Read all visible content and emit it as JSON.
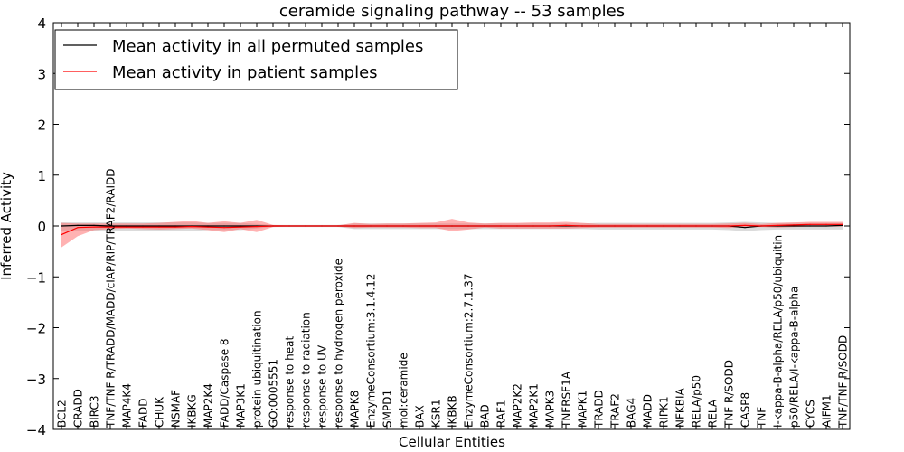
{
  "chart_data": {
    "type": "line",
    "title": "ceramide signaling pathway -- 53 samples",
    "xlabel": "Cellular Entities",
    "ylabel": "Inferred Activity",
    "ylim": [
      -4,
      4
    ],
    "yticks": [
      -4,
      -3,
      -2,
      -1,
      0,
      1,
      2,
      3,
      4
    ],
    "ytick_labels": [
      "−4",
      "−3",
      "−2",
      "−1",
      "0",
      "1",
      "2",
      "3",
      "4"
    ],
    "grid": false,
    "legend_position": "top-left",
    "categories": [
      "BCL2",
      "CRADD",
      "BIRC3",
      "TNF/TNF R/TRADD/MADD/cIAP/RIP/TRAF2/RAIDD",
      "MAP4K4",
      "FADD",
      "CHUK",
      "NSMAF",
      "IKBKG",
      "MAP2K4",
      "FADD/Caspase 8",
      "MAP3K1",
      "protein ubiquitination",
      "GO:0005551",
      "response to heat",
      "response to radiation",
      "response to UV",
      "response to hydrogen peroxide",
      "MAPK8",
      "EnzymeConsortium:3.1.4.12",
      "SMPD1",
      "mol:ceramide",
      "BAX",
      "KSR1",
      "IKBKB",
      "EnzymeConsortium:2.7.1.37",
      "BAD",
      "RAF1",
      "MAP2K2",
      "MAP2K1",
      "MAPK3",
      "TNFRSF1A",
      "MAPK1",
      "TRADD",
      "TRAF2",
      "BAG4",
      "MADD",
      "RIPK1",
      "NFKBIA",
      "RELA/p50",
      "RELA",
      "TNF R/SODD",
      "CASP8",
      "TNF",
      "I-kappa-B-alpha/RELA/p50/ubiquitin",
      "p50/RELA/I-kappa-B-alpha",
      "CYCS",
      "AIFM1",
      "TNF/TNF R/SODD"
    ],
    "series": [
      {
        "name": "Mean activity in all permuted samples",
        "color": "#000000",
        "band_color": "#999999",
        "values": [
          0.0,
          0.01,
          0.01,
          0.0,
          0.0,
          0.0,
          0.0,
          0.0,
          0.0,
          0.0,
          0.0,
          0.0,
          0.0,
          0.0,
          0.0,
          0.0,
          0.0,
          0.0,
          0.0,
          0.0,
          0.0,
          0.0,
          0.0,
          0.0,
          0.0,
          0.0,
          0.0,
          0.0,
          0.0,
          0.0,
          0.0,
          0.0,
          0.0,
          0.0,
          0.0,
          0.0,
          0.0,
          0.0,
          0.0,
          0.0,
          0.0,
          0.0,
          -0.03,
          0.0,
          0.0,
          0.0,
          0.0,
          0.0,
          0.01
        ],
        "lower": [
          -0.1,
          -0.1,
          -0.1,
          -0.1,
          -0.1,
          -0.1,
          -0.1,
          -0.1,
          -0.1,
          -0.08,
          -0.08,
          -0.08,
          -0.05,
          -0.02,
          -0.02,
          -0.02,
          -0.02,
          -0.02,
          -0.06,
          -0.06,
          -0.06,
          -0.06,
          -0.06,
          -0.06,
          -0.06,
          -0.06,
          -0.06,
          -0.06,
          -0.06,
          -0.06,
          -0.06,
          -0.06,
          -0.06,
          -0.07,
          -0.07,
          -0.07,
          -0.07,
          -0.07,
          -0.07,
          -0.07,
          -0.07,
          -0.08,
          -0.1,
          -0.08,
          -0.07,
          -0.07,
          -0.07,
          -0.07,
          -0.07
        ],
        "upper": [
          0.07,
          0.07,
          0.07,
          0.07,
          0.07,
          0.07,
          0.07,
          0.07,
          0.07,
          0.06,
          0.06,
          0.06,
          0.04,
          0.02,
          0.02,
          0.02,
          0.02,
          0.02,
          0.05,
          0.05,
          0.05,
          0.05,
          0.05,
          0.05,
          0.05,
          0.05,
          0.05,
          0.05,
          0.05,
          0.05,
          0.05,
          0.05,
          0.05,
          0.06,
          0.06,
          0.06,
          0.06,
          0.06,
          0.06,
          0.06,
          0.06,
          0.07,
          0.08,
          0.07,
          0.06,
          0.06,
          0.06,
          0.06,
          0.06
        ]
      },
      {
        "name": "Mean activity in patient samples",
        "color": "#ff0000",
        "band_color": "#ff6666",
        "values": [
          -0.17,
          -0.03,
          -0.02,
          -0.02,
          -0.02,
          -0.02,
          -0.02,
          -0.02,
          -0.01,
          -0.02,
          -0.03,
          -0.02,
          -0.01,
          0.0,
          0.0,
          0.0,
          0.0,
          0.0,
          0.0,
          0.0,
          0.0,
          0.0,
          0.0,
          0.0,
          0.0,
          0.0,
          0.0,
          0.0,
          0.0,
          0.0,
          0.0,
          0.01,
          0.0,
          0.0,
          0.0,
          0.0,
          0.0,
          0.0,
          0.0,
          0.0,
          0.0,
          0.0,
          0.01,
          0.0,
          0.01,
          0.02,
          0.03,
          0.03,
          0.03
        ],
        "lower": [
          -0.42,
          -0.2,
          -0.08,
          -0.06,
          -0.05,
          -0.06,
          -0.07,
          -0.06,
          -0.05,
          -0.08,
          -0.12,
          -0.06,
          -0.12,
          -0.02,
          -0.01,
          -0.01,
          -0.01,
          -0.01,
          -0.04,
          -0.03,
          -0.03,
          -0.03,
          -0.04,
          -0.04,
          -0.1,
          -0.07,
          -0.03,
          -0.05,
          -0.05,
          -0.05,
          -0.05,
          -0.05,
          -0.04,
          -0.03,
          -0.03,
          -0.03,
          -0.03,
          -0.03,
          -0.03,
          -0.03,
          -0.03,
          -0.04,
          -0.01,
          -0.02,
          -0.03,
          -0.02,
          -0.01,
          -0.01,
          -0.01
        ],
        "upper": [
          0.06,
          0.05,
          0.05,
          0.05,
          0.05,
          0.05,
          0.06,
          0.08,
          0.1,
          0.06,
          0.09,
          0.06,
          0.12,
          0.02,
          0.01,
          0.01,
          0.01,
          0.01,
          0.06,
          0.04,
          0.05,
          0.05,
          0.06,
          0.07,
          0.14,
          0.07,
          0.05,
          0.06,
          0.06,
          0.07,
          0.07,
          0.08,
          0.06,
          0.04,
          0.04,
          0.04,
          0.04,
          0.04,
          0.04,
          0.04,
          0.04,
          0.05,
          0.06,
          0.04,
          0.06,
          0.07,
          0.08,
          0.08,
          0.08
        ]
      }
    ]
  }
}
